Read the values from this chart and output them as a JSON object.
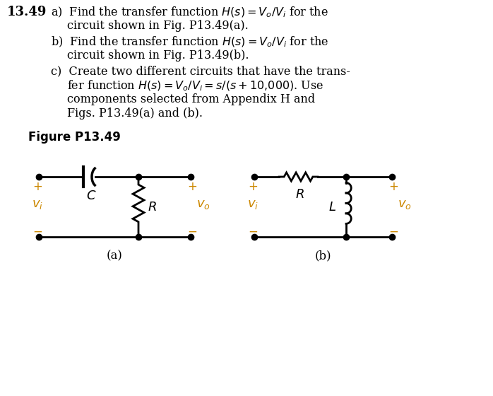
{
  "bg_color": "#ffffff",
  "text_color": "#000000",
  "orange_color": "#cc8800",
  "problem_number": "13.49",
  "figure_label": "Figure P13.49",
  "fig_a_label": "(a)",
  "fig_b_label": "(b)"
}
